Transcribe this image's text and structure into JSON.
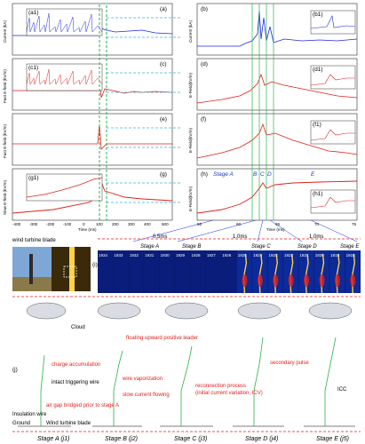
{
  "panels": {
    "a_label": "(a)",
    "b_label": "(b)",
    "c_label": "(c)",
    "d_label": "(d)",
    "e_label": "(e)",
    "f_label": "(f)",
    "g_label": "(g)",
    "h_label": "(h)",
    "i_label": "(i)",
    "j_label": "(j)",
    "a1": "(a1)",
    "b1": "(b1)",
    "c1": "(c1)",
    "d1": "(d1)",
    "f1": "(f1)",
    "g1": "(g1)",
    "h1": "(h1)"
  },
  "axes": {
    "current_ka": "Current (kA)",
    "fast_efield_kvm": "Fast E-field (kV/m)",
    "slow_efield_kvm": "Slow E-field (kV/m)",
    "efield_kvm": "E-Field(kV/m)",
    "time_ms": "Time (ms)",
    "time_ms_2": "Time (ms)",
    "left_xticks": [
      "-400",
      "-300",
      "-200",
      "-100",
      "0",
      "100",
      "200",
      "300",
      "400",
      "500"
    ],
    "right_xticks": [
      "55",
      "60",
      "65",
      "70",
      "75"
    ]
  },
  "stages_top": {
    "a": "Stage A",
    "b": "B",
    "c": "C",
    "d": "D",
    "e": "E"
  },
  "photo_header": {
    "blade_label": "wind turbine blade",
    "interval_1": "0.5ms",
    "interval_2": "1.0ms",
    "interval_3": "1.0ms",
    "stages": [
      "Stage A",
      "Stage B",
      "Stage C",
      "Stage D",
      "Stage E"
    ],
    "frames": [
      "1934",
      "1933",
      "1932",
      "1931",
      "1930",
      "1929",
      "1928",
      "1927",
      "1926",
      "1925",
      "1924",
      "1923",
      "1922",
      "1921",
      "1920",
      "1919",
      "1918"
    ]
  },
  "schematic": {
    "cloud": "Cloud",
    "charge_accumulation": "charge accumulation",
    "intact_wire": "intact triggering wire",
    "air_gap": "air gap bridged prior to stage A",
    "insulation_wire": "Insulation wire",
    "ground": "Ground",
    "wind_blade": "Wind turbine blade",
    "floating_leader": "floating upward positive leader",
    "wire_vaporization": "wire vaporization",
    "slow_current": "slow current flowing",
    "reconnection": "reconnection process",
    "reconnection_sub": "(initial current variation, ICV)",
    "secondary_pulse": "secondary pulse",
    "icc": "ICC",
    "bottom_stages": [
      "Stage A (j1)",
      "Stage B (j2)",
      "Stage C (j3)",
      "Stage D (j4)",
      "Stage E (j5)"
    ]
  },
  "colors": {
    "blue_trace": "#1f2ae0",
    "red_trace": "#e0201b",
    "green_box": "#2bb24c",
    "cyan_arrow": "#3ab4e6",
    "label_red": "#e0201b",
    "stage_blue": "#1a3fb0"
  }
}
